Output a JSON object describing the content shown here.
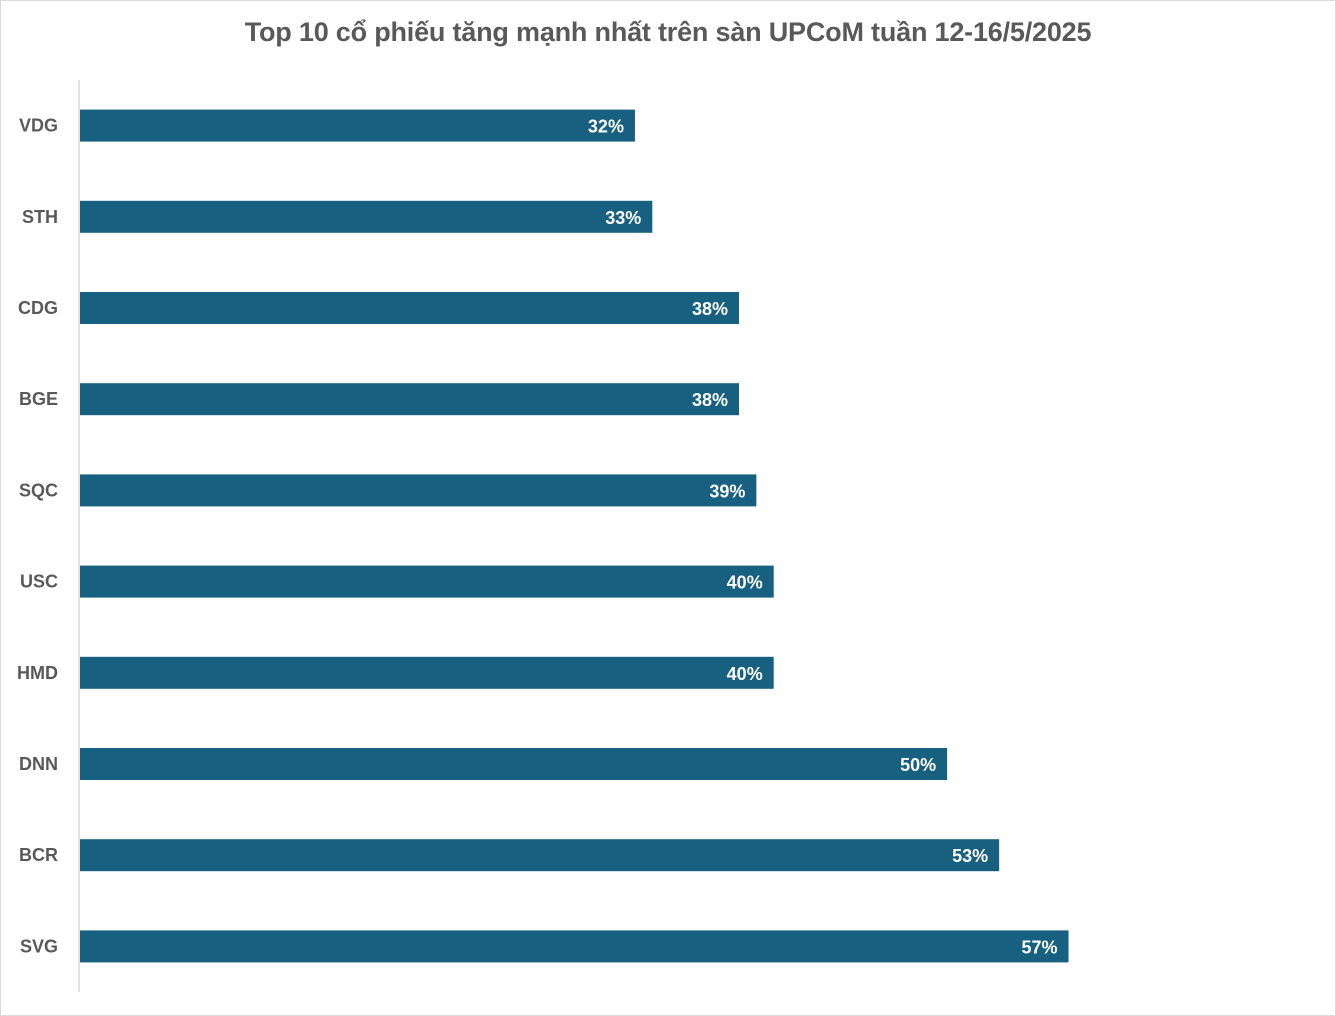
{
  "chart_data": {
    "type": "bar",
    "orientation": "horizontal",
    "title": "Top 10 cổ phiếu tăng mạnh nhất trên sàn UPCoM tuần 12-16/5/2025",
    "xlabel": "",
    "ylabel": "",
    "categories": [
      "VDG",
      "STH",
      "CDG",
      "BGE",
      "SQC",
      "USC",
      "HMD",
      "DNN",
      "BCR",
      "SVG"
    ],
    "values": [
      32,
      33,
      38,
      38,
      39,
      40,
      40,
      50,
      53,
      57
    ],
    "value_labels": [
      "32%",
      "33%",
      "38%",
      "38%",
      "39%",
      "40%",
      "40%",
      "50%",
      "53%",
      "57%"
    ],
    "xlim": [
      0,
      71.5
    ],
    "bar_color": "#17607f",
    "grid": false,
    "legend": "none"
  }
}
